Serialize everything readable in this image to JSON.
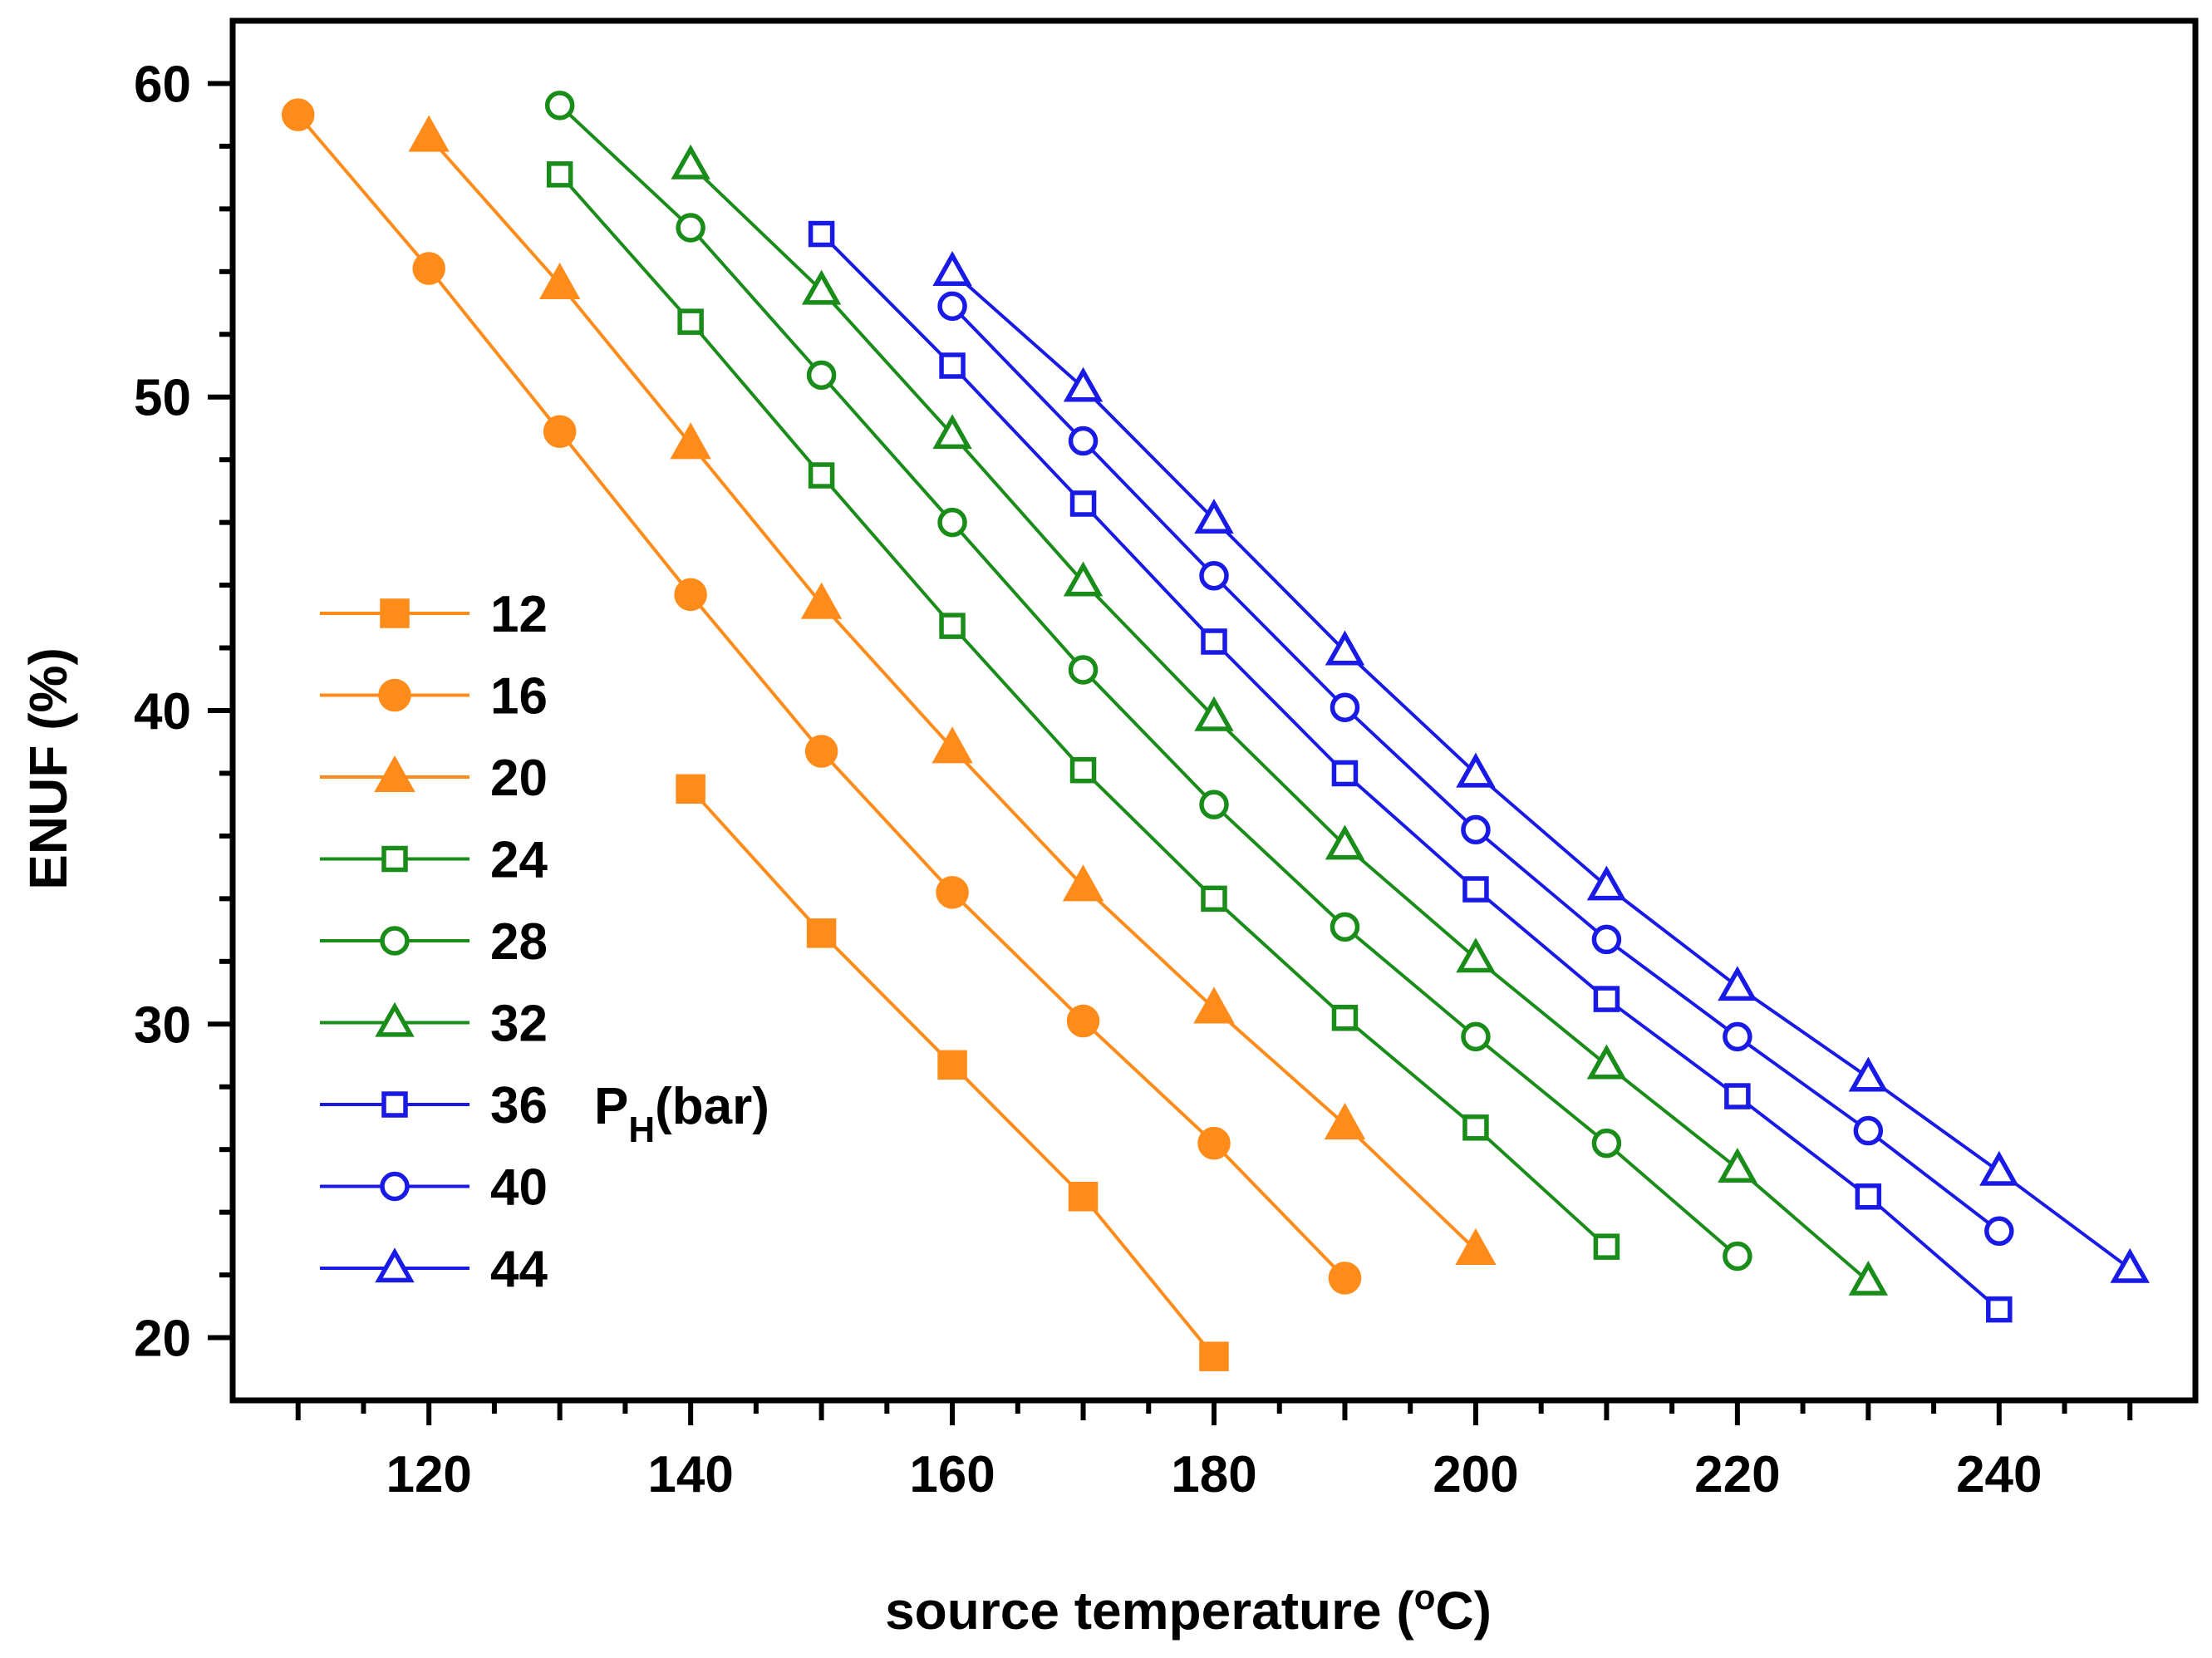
{
  "chart_data": {
    "type": "line",
    "title": "",
    "xlabel": "source temperature (",
    "xlabel_sup": "o",
    "xlabel_end": "C)",
    "ylabel": "ENUF (%)",
    "xlim": [
      105,
      255
    ],
    "ylim": [
      18,
      62
    ],
    "xticks": [
      120,
      140,
      160,
      180,
      200,
      220,
      240
    ],
    "yticks": [
      20,
      30,
      40,
      50,
      60
    ],
    "grid": false,
    "legend_position": "center-left",
    "legend_title": "P",
    "legend_title_sub": "H",
    "legend_title_end": "(bar)",
    "series": [
      {
        "name": "12",
        "color": "#FF8C1A",
        "marker": "square",
        "filled": true,
        "x": [
          140,
          150,
          160,
          170,
          180
        ],
        "y": [
          37.5,
          32.9,
          28.7,
          24.5,
          19.4
        ]
      },
      {
        "name": "16",
        "color": "#FF8C1A",
        "marker": "circle",
        "filled": true,
        "x": [
          110,
          120,
          130,
          140,
          150,
          160,
          170,
          180,
          190
        ],
        "y": [
          59.0,
          54.1,
          48.9,
          43.7,
          38.7,
          34.2,
          30.1,
          26.2,
          21.9
        ]
      },
      {
        "name": "20",
        "color": "#FF8C1A",
        "marker": "triangle",
        "filled": true,
        "x": [
          120,
          130,
          140,
          150,
          160,
          170,
          180,
          190,
          200
        ],
        "y": [
          58.3,
          53.6,
          48.5,
          43.4,
          38.8,
          34.4,
          30.5,
          26.8,
          22.8
        ]
      },
      {
        "name": "24",
        "color": "#1A8C1A",
        "marker": "square",
        "filled": false,
        "x": [
          130,
          140,
          150,
          160,
          170,
          180,
          190,
          200,
          210
        ],
        "y": [
          57.1,
          52.4,
          47.5,
          42.7,
          38.1,
          34.0,
          30.2,
          26.7,
          22.9
        ]
      },
      {
        "name": "28",
        "color": "#1A8C1A",
        "marker": "circle",
        "filled": false,
        "x": [
          130,
          140,
          150,
          160,
          170,
          180,
          190,
          200,
          210,
          220
        ],
        "y": [
          59.3,
          55.4,
          50.7,
          46.0,
          41.3,
          37.0,
          33.1,
          29.6,
          26.2,
          22.6
        ]
      },
      {
        "name": "32",
        "color": "#1A8C1A",
        "marker": "triangle",
        "filled": false,
        "x": [
          140,
          150,
          160,
          170,
          180,
          190,
          200,
          210,
          220,
          230
        ],
        "y": [
          57.4,
          53.4,
          48.8,
          44.1,
          39.8,
          35.7,
          32.1,
          28.7,
          25.4,
          21.8
        ]
      },
      {
        "name": "36",
        "color": "#1A1AE6",
        "marker": "square",
        "filled": false,
        "x": [
          150,
          160,
          170,
          180,
          190,
          200,
          210,
          220,
          230,
          240
        ],
        "y": [
          55.2,
          51.0,
          46.6,
          42.2,
          38.0,
          34.3,
          30.8,
          27.7,
          24.5,
          20.9
        ]
      },
      {
        "name": "40",
        "color": "#1A1AE6",
        "marker": "circle",
        "filled": false,
        "x": [
          160,
          170,
          180,
          190,
          200,
          210,
          220,
          230,
          240
        ],
        "y": [
          52.9,
          48.6,
          44.3,
          40.1,
          36.2,
          32.7,
          29.6,
          26.6,
          23.4
        ]
      },
      {
        "name": "44",
        "color": "#1A1AE6",
        "marker": "triangle",
        "filled": false,
        "x": [
          160,
          170,
          180,
          190,
          200,
          210,
          220,
          230,
          240,
          250
        ],
        "y": [
          54.0,
          50.3,
          46.1,
          41.9,
          38.0,
          34.4,
          31.2,
          28.3,
          25.3,
          22.2
        ]
      }
    ]
  }
}
